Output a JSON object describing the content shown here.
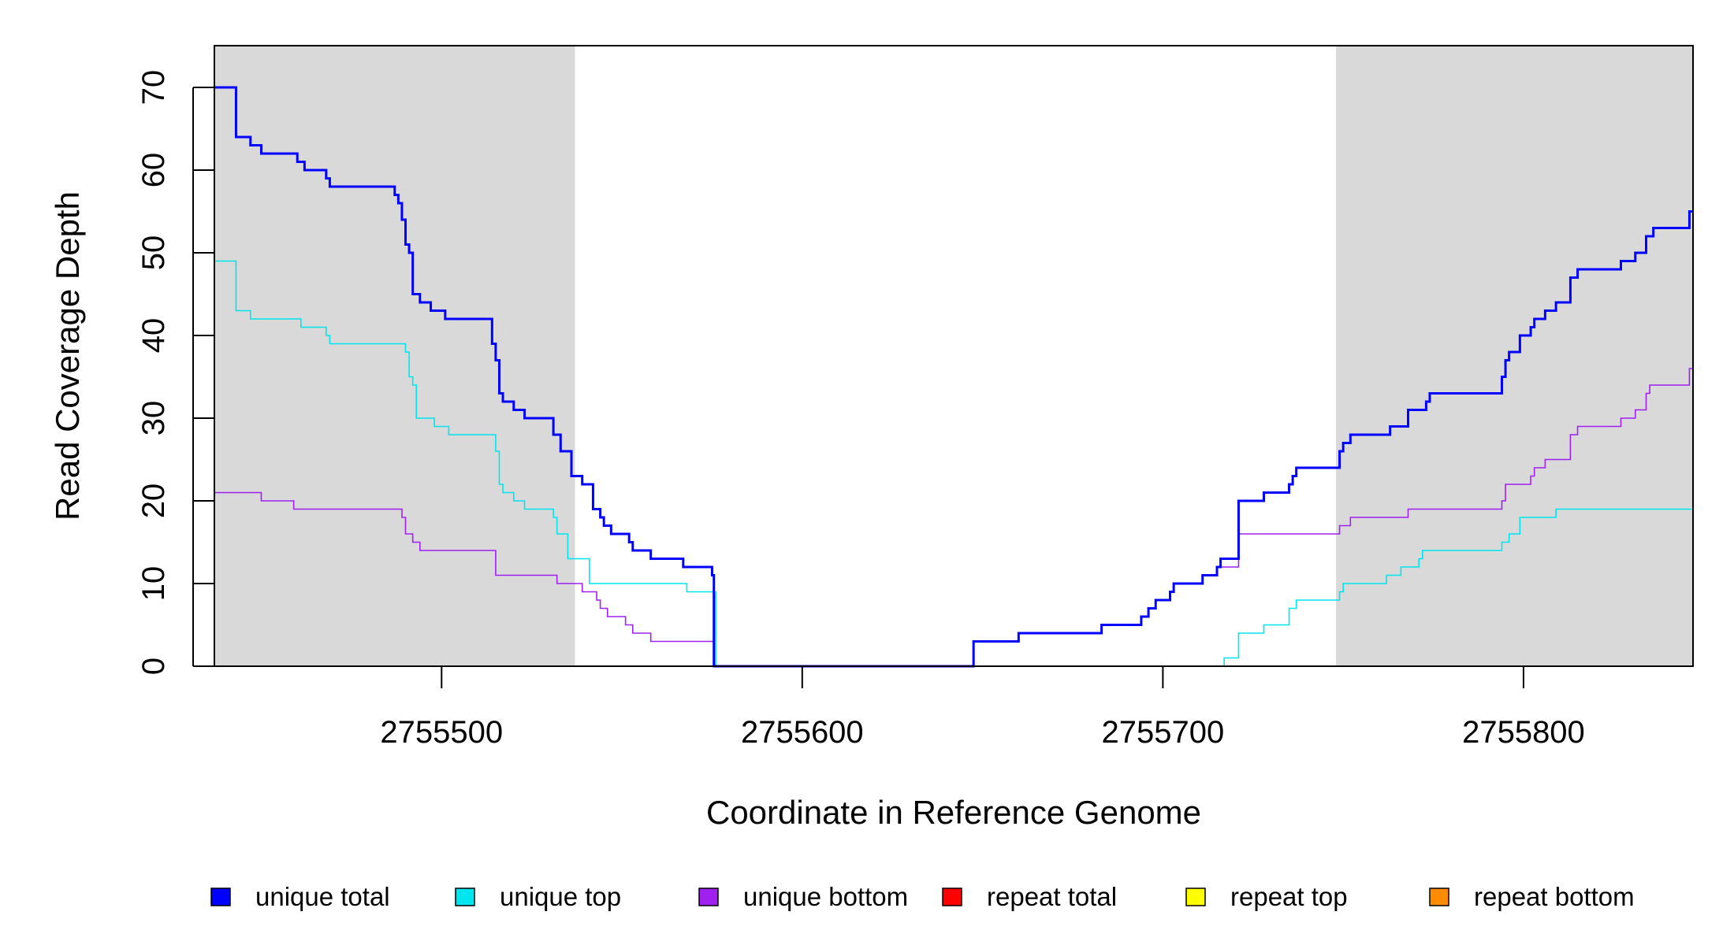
{
  "chart_data": {
    "type": "line",
    "title": "",
    "xlabel": "Coordinate in Reference Genome",
    "ylabel": "Read Coverage Depth",
    "xlim": [
      2755437,
      2755847
    ],
    "ylim": [
      0,
      70
    ],
    "x_ticks": [
      {
        "value": 2755500,
        "label": "2755500"
      },
      {
        "value": 2755600,
        "label": "2755600"
      },
      {
        "value": 2755700,
        "label": "2755700"
      },
      {
        "value": 2755800,
        "label": "2755800"
      }
    ],
    "y_ticks": [
      {
        "value": 0,
        "label": "0"
      },
      {
        "value": 10,
        "label": "10"
      },
      {
        "value": 20,
        "label": "20"
      },
      {
        "value": 30,
        "label": "30"
      },
      {
        "value": 40,
        "label": "40"
      },
      {
        "value": 50,
        "label": "50"
      },
      {
        "value": 60,
        "label": "60"
      },
      {
        "value": 70,
        "label": "70"
      }
    ],
    "shaded_regions": [
      {
        "start": 2755437,
        "end": 2755537,
        "color": "#d9d9d9"
      },
      {
        "start": 2755748,
        "end": 2755847,
        "color": "#d9d9d9"
      }
    ],
    "legend_position": "bottom",
    "series": [
      {
        "name": "unique total",
        "color": "#0000ff",
        "width": 3,
        "points": [
          [
            2755437,
            70
          ],
          [
            2755443,
            64
          ],
          [
            2755447,
            63
          ],
          [
            2755450,
            62
          ],
          [
            2755458,
            62
          ],
          [
            2755460,
            61
          ],
          [
            2755462,
            60
          ],
          [
            2755468,
            59
          ],
          [
            2755469,
            58
          ],
          [
            2755486,
            58
          ],
          [
            2755487,
            57
          ],
          [
            2755488,
            56
          ],
          [
            2755489,
            54
          ],
          [
            2755490,
            51
          ],
          [
            2755491,
            50
          ],
          [
            2755492,
            45
          ],
          [
            2755494,
            44
          ],
          [
            2755497,
            43
          ],
          [
            2755501,
            42
          ],
          [
            2755513,
            42
          ],
          [
            2755514,
            39
          ],
          [
            2755515,
            37
          ],
          [
            2755516,
            33
          ],
          [
            2755517,
            32
          ],
          [
            2755520,
            31
          ],
          [
            2755523,
            30
          ],
          [
            2755530,
            30
          ],
          [
            2755531,
            28
          ],
          [
            2755533,
            26
          ],
          [
            2755536,
            23
          ],
          [
            2755539,
            22
          ],
          [
            2755542,
            19
          ],
          [
            2755544,
            18
          ],
          [
            2755545,
            17
          ],
          [
            2755547,
            16
          ],
          [
            2755552,
            15
          ],
          [
            2755553,
            14
          ],
          [
            2755558,
            13
          ],
          [
            2755567,
            12
          ],
          [
            2755575,
            11
          ],
          [
            2755575.5,
            0
          ],
          [
            2755647,
            0
          ],
          [
            2755647.5,
            3
          ],
          [
            2755660,
            4
          ],
          [
            2755683,
            5
          ],
          [
            2755694,
            6
          ],
          [
            2755696,
            7
          ],
          [
            2755698,
            8
          ],
          [
            2755702,
            9
          ],
          [
            2755703,
            10
          ],
          [
            2755711,
            11
          ],
          [
            2755715,
            12
          ],
          [
            2755716,
            13
          ],
          [
            2755721,
            20
          ],
          [
            2755728,
            21
          ],
          [
            2755735,
            22
          ],
          [
            2755736,
            23
          ],
          [
            2755737,
            24
          ],
          [
            2755748,
            24
          ],
          [
            2755749,
            26
          ],
          [
            2755750,
            27
          ],
          [
            2755752,
            28
          ],
          [
            2755763,
            29
          ],
          [
            2755768,
            31
          ],
          [
            2755773,
            32
          ],
          [
            2755774,
            33
          ],
          [
            2755793,
            33
          ],
          [
            2755794,
            35
          ],
          [
            2755795,
            37
          ],
          [
            2755796,
            38
          ],
          [
            2755799,
            40
          ],
          [
            2755802,
            41
          ],
          [
            2755803,
            42
          ],
          [
            2755806,
            43
          ],
          [
            2755809,
            44
          ],
          [
            2755813,
            47
          ],
          [
            2755815,
            48
          ],
          [
            2755827,
            49
          ],
          [
            2755831,
            50
          ],
          [
            2755834,
            52
          ],
          [
            2755836,
            53
          ],
          [
            2755845,
            53
          ],
          [
            2755846,
            55
          ],
          [
            2755847,
            55
          ]
        ]
      },
      {
        "name": "unique top",
        "color": "#00e5ee",
        "width": 1.6,
        "points": [
          [
            2755437,
            49
          ],
          [
            2755443,
            43
          ],
          [
            2755447,
            42
          ],
          [
            2755460,
            42
          ],
          [
            2755461,
            41
          ],
          [
            2755467,
            41
          ],
          [
            2755468,
            40
          ],
          [
            2755469,
            39
          ],
          [
            2755489,
            39
          ],
          [
            2755490,
            38
          ],
          [
            2755491,
            35
          ],
          [
            2755492,
            34
          ],
          [
            2755493,
            30
          ],
          [
            2755498,
            29
          ],
          [
            2755502,
            28
          ],
          [
            2755514,
            28
          ],
          [
            2755515,
            26
          ],
          [
            2755516,
            22
          ],
          [
            2755517,
            21
          ],
          [
            2755520,
            20
          ],
          [
            2755523,
            19
          ],
          [
            2755530,
            19
          ],
          [
            2755531,
            18
          ],
          [
            2755532,
            16
          ],
          [
            2755535,
            13
          ],
          [
            2755541,
            10
          ],
          [
            2755567,
            10
          ],
          [
            2755568,
            9
          ],
          [
            2755575,
            9
          ],
          [
            2755576,
            0
          ],
          [
            2755716,
            0
          ],
          [
            2755717,
            1
          ],
          [
            2755721,
            4
          ],
          [
            2755728,
            5
          ],
          [
            2755735,
            7
          ],
          [
            2755737,
            8
          ],
          [
            2755748,
            8
          ],
          [
            2755749,
            9
          ],
          [
            2755750,
            10
          ],
          [
            2755762,
            11
          ],
          [
            2755766,
            12
          ],
          [
            2755771,
            13
          ],
          [
            2755772,
            14
          ],
          [
            2755793,
            14
          ],
          [
            2755794,
            15
          ],
          [
            2755796,
            16
          ],
          [
            2755799,
            18
          ],
          [
            2755809,
            19
          ],
          [
            2755847,
            19
          ]
        ]
      },
      {
        "name": "unique bottom",
        "color": "#a020f0",
        "width": 1.6,
        "points": [
          [
            2755437,
            21
          ],
          [
            2755450,
            20
          ],
          [
            2755458,
            20
          ],
          [
            2755459,
            19
          ],
          [
            2755487,
            19
          ],
          [
            2755489,
            18
          ],
          [
            2755490,
            16
          ],
          [
            2755492,
            15
          ],
          [
            2755494,
            14
          ],
          [
            2755514,
            14
          ],
          [
            2755515,
            11
          ],
          [
            2755531,
            11
          ],
          [
            2755532,
            10
          ],
          [
            2755539,
            9
          ],
          [
            2755543,
            8
          ],
          [
            2755544,
            7
          ],
          [
            2755546,
            6
          ],
          [
            2755551,
            5
          ],
          [
            2755553,
            4
          ],
          [
            2755558,
            3
          ],
          [
            2755575,
            3
          ],
          [
            2755575.5,
            0
          ],
          [
            2755647,
            0
          ],
          [
            2755647.5,
            3
          ],
          [
            2755660,
            4
          ],
          [
            2755683,
            5
          ],
          [
            2755694,
            6
          ],
          [
            2755696,
            7
          ],
          [
            2755698,
            8
          ],
          [
            2755702,
            9
          ],
          [
            2755703,
            10
          ],
          [
            2755711,
            11
          ],
          [
            2755715,
            12
          ],
          [
            2755721,
            16
          ],
          [
            2755748,
            16
          ],
          [
            2755749,
            17
          ],
          [
            2755752,
            18
          ],
          [
            2755768,
            19
          ],
          [
            2755793,
            19
          ],
          [
            2755794,
            20
          ],
          [
            2755795,
            22
          ],
          [
            2755802,
            23
          ],
          [
            2755803,
            24
          ],
          [
            2755806,
            25
          ],
          [
            2755813,
            28
          ],
          [
            2755815,
            29
          ],
          [
            2755827,
            30
          ],
          [
            2755831,
            31
          ],
          [
            2755834,
            33
          ],
          [
            2755835,
            34
          ],
          [
            2755845,
            34
          ],
          [
            2755846,
            36
          ],
          [
            2755847,
            36
          ]
        ]
      },
      {
        "name": "repeat total",
        "color": "#ff0000",
        "width": 1.6,
        "points": [
          [
            2755437,
            0
          ],
          [
            2755847,
            0
          ]
        ]
      },
      {
        "name": "repeat top",
        "color": "#ffff00",
        "width": 1.6,
        "points": [
          [
            2755437,
            0
          ],
          [
            2755847,
            0
          ]
        ]
      },
      {
        "name": "repeat bottom",
        "color": "#ff8c00",
        "width": 1.6,
        "points": [
          [
            2755437,
            0
          ],
          [
            2755847,
            0
          ]
        ]
      }
    ]
  }
}
